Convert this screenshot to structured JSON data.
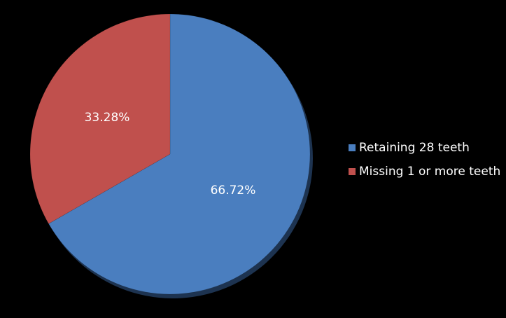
{
  "chart_data": {
    "type": "pie",
    "categories": [
      "Retaining 28 teeth",
      "Missing 1 or more teeth"
    ],
    "values": [
      66.72,
      33.28
    ],
    "value_labels": [
      "66.72%",
      "33.28%"
    ],
    "colors": [
      "#4a7ebf",
      "#c0504d"
    ],
    "legend": "right"
  }
}
